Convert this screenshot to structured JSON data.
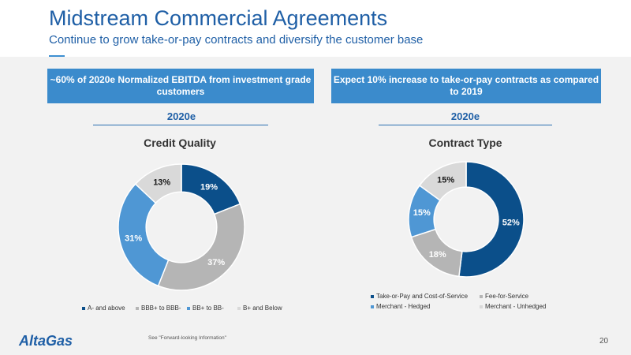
{
  "header": {
    "title": "Midstream Commercial Agreements",
    "subtitle": "Continue to grow take-or-pay contracts and diversify the customer base"
  },
  "left_panel": {
    "box_text": "~60% of 2020e Normalized EBITDA from investment grade customers",
    "year": "2020e"
  },
  "right_panel": {
    "box_text": "Expect 10% increase to take-or-pay contracts as compared to 2019",
    "year": "2020e"
  },
  "chart_data": [
    {
      "type": "pie",
      "donut": true,
      "title": "Credit Quality",
      "series": [
        {
          "name": "A- and above",
          "value": 19,
          "label": "19%",
          "color": "#0b4f8a",
          "label_color": "#ffffff"
        },
        {
          "name": "BBB+ to BBB-",
          "value": 37,
          "label": "37%",
          "color": "#b5b5b5",
          "label_color": "#ffffff"
        },
        {
          "name": "BB+ to BB-",
          "value": 31,
          "label": "31%",
          "color": "#4f97d4",
          "label_color": "#ffffff"
        },
        {
          "name": "B+ and Below",
          "value": 13,
          "label": "13%",
          "color": "#d9d9d9",
          "label_color": "#1a1a1a"
        }
      ],
      "legend_position": "bottom"
    },
    {
      "type": "pie",
      "donut": true,
      "title": "Contract Type",
      "series": [
        {
          "name": "Take-or-Pay and Cost-of-Service",
          "value": 52,
          "label": "52%",
          "color": "#0b4f8a",
          "label_color": "#ffffff"
        },
        {
          "name": "Fee-for-Service",
          "value": 18,
          "label": "18%",
          "color": "#b5b5b5",
          "label_color": "#ffffff"
        },
        {
          "name": "Merchant - Hedged",
          "value": 15,
          "label": "15%",
          "color": "#4f97d4",
          "label_color": "#ffffff"
        },
        {
          "name": "Merchant - Unhedged",
          "value": 15,
          "label": "15%",
          "color": "#d9d9d9",
          "label_color": "#1a1a1a"
        }
      ],
      "legend_position": "bottom"
    }
  ],
  "footer": {
    "logo": "AltaGas",
    "note": "See \"Forward-looking Information\"",
    "page_number": "20"
  }
}
